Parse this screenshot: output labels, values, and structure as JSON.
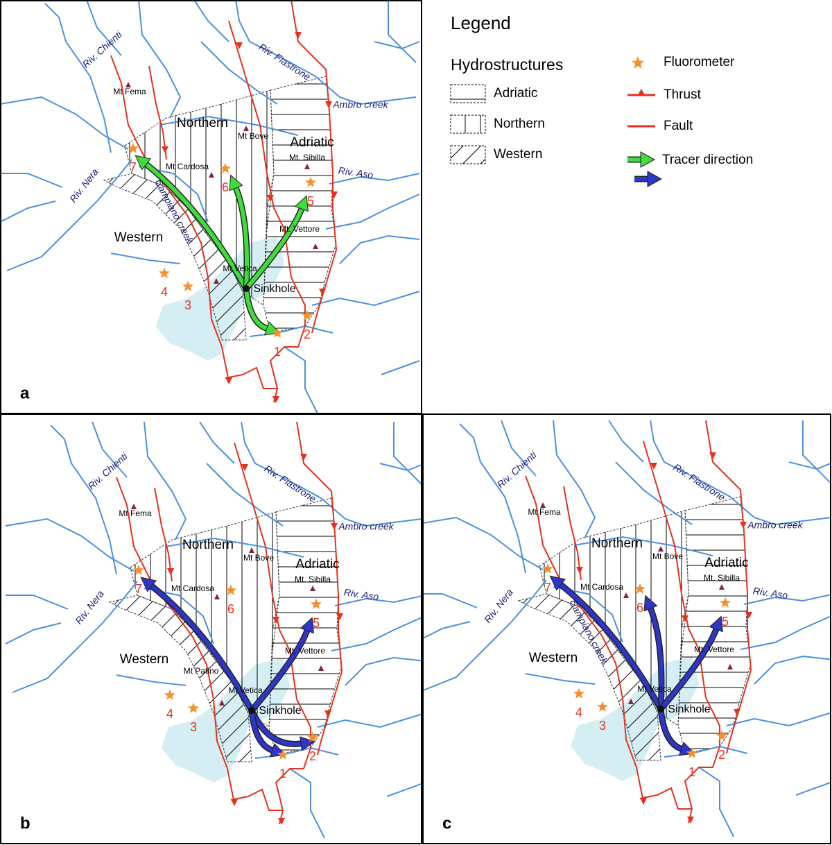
{
  "legend": {
    "title": "Legend",
    "hydrostructures_title": "Hydrostructures",
    "hydrostructures": [
      "Adriatic",
      "Northern",
      "Western"
    ],
    "symbols": [
      "Fluorometer",
      "Thrust",
      "Fault",
      "Tracer direction"
    ]
  },
  "panels": [
    {
      "letter": "a",
      "labels": [
        "Riv. Chienti",
        "Riv. Fiastrone",
        "Ambro creek",
        "Mt Fema",
        "Northern",
        "Mt Bove",
        "Adriatic",
        "Mt. Sibilla",
        "Riv. Aso",
        "Mt Cardosa",
        "Riv. Nera",
        "Campiano creek",
        "Western",
        "Mt. Vettore",
        "Mt Vetica",
        "Sinkhole"
      ],
      "stations": [
        "1",
        "2",
        "3",
        "4",
        "5",
        "6",
        "7"
      ]
    },
    {
      "letter": "b",
      "labels": [
        "Riv. Chienti",
        "Riv. Fiastrone",
        "Ambro creek",
        "Mt Fema",
        "Northern",
        "Mt Bove",
        "Adriatic",
        "Mt. Sibilla",
        "Riv. Aso",
        "Mt Cardosa",
        "Riv. Nera",
        "Mt Patino",
        "Western",
        "Mt. Vettore",
        "Mt Vetica",
        "Sinkhole"
      ],
      "stations": [
        "1",
        "2",
        "3",
        "4",
        "5",
        "6",
        "7"
      ]
    },
    {
      "letter": "c",
      "labels": [
        "Riv. Chienti",
        "Riv. Fiastrone",
        "Ambro creek",
        "Mt Fema",
        "Northern",
        "Mt Bove",
        "Adriatic",
        "Mt. Sibilla",
        "Riv. Aso",
        "Mt Cardosa",
        "Riv. Nera",
        "Campiano creek",
        "Western",
        "Mt. Vettore",
        "Mt Vetica",
        "Sinkhole"
      ],
      "stations": [
        "1",
        "2",
        "3",
        "4",
        "5",
        "6",
        "7"
      ]
    }
  ]
}
